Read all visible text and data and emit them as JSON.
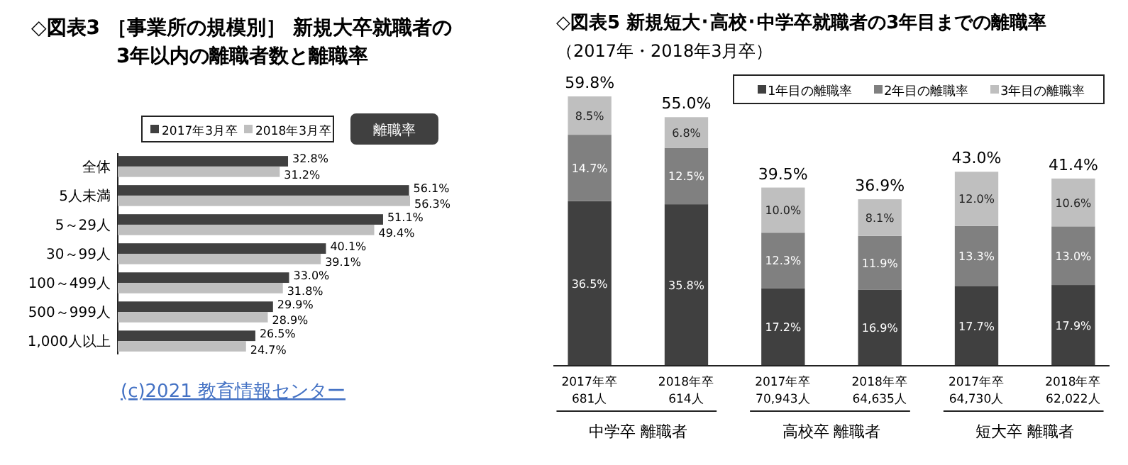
{
  "chart_data": [
    {
      "type": "bar",
      "orientation": "horizontal",
      "title": "◇図表3 ［事業所の規模別］ 新規大卒就職者の\n3年以内の離職者数と離職率",
      "categories": [
        "全体",
        "5人未満",
        "5～29人",
        "30～99人",
        "100～499人",
        "500～999人",
        "1,000人以上"
      ],
      "series": [
        {
          "name": "2017年3月卒",
          "color": "#404040",
          "values": [
            32.8,
            56.1,
            51.1,
            40.1,
            33.0,
            29.9,
            26.5
          ],
          "value_labels": [
            "32.8%",
            "56.1%",
            "51.1%",
            "40.1%",
            "33.0%",
            "29.9%",
            "26.5%"
          ]
        },
        {
          "name": "2018年3月卒",
          "color": "#bfbfbf",
          "values": [
            31.2,
            56.3,
            49.4,
            39.1,
            31.8,
            28.9,
            24.7
          ],
          "value_labels": [
            "31.2%",
            "56.3%",
            "49.4%",
            "39.1%",
            "31.8%",
            "28.9%",
            "24.7%"
          ]
        }
      ],
      "legend": "top",
      "annotations": [
        "離職率",
        "(c)2021 教育情報センター"
      ]
    },
    {
      "type": "bar",
      "stacked": true,
      "title": "◇図表5 新規短大･高校･中学卒就職者の3年目までの離職率",
      "subtitle": "（2017年・2018年3月卒）",
      "categories": [
        "2017年卒\n681人",
        "2018年卒\n614人",
        "2017年卒\n70,943人",
        "2018年卒\n64,635人",
        "2017年卒\n64,730人",
        "2018年卒\n62,022人"
      ],
      "series": [
        {
          "name": "1年目の離職率",
          "color": "#404040",
          "values": [
            36.5,
            35.8,
            17.2,
            16.9,
            17.7,
            17.9
          ],
          "value_labels": [
            "36.5%",
            "35.8%",
            "17.2%",
            "16.9%",
            "17.7%",
            "17.9%"
          ]
        },
        {
          "name": "2年目の離職率",
          "color": "#808080",
          "values": [
            14.7,
            12.5,
            12.3,
            11.9,
            13.3,
            13.0
          ],
          "value_labels": [
            "14.7%",
            "12.5%",
            "12.3%",
            "11.9%",
            "13.3%",
            "13.0%"
          ]
        },
        {
          "name": "3年目の離職率",
          "color": "#bfbfbf",
          "values": [
            8.5,
            6.8,
            10.0,
            8.1,
            12.0,
            10.6
          ],
          "value_labels": [
            "8.5%",
            "6.8%",
            "10.0%",
            "8.1%",
            "12.0%",
            "10.6%"
          ]
        }
      ],
      "totals": [
        "59.8%",
        "55.0%",
        "39.5%",
        "36.9%",
        "43.0%",
        "41.4%"
      ],
      "legend": "top right",
      "annotations": [
        "中学卒 離職者",
        "高校卒 離職者",
        "短大卒 離職者"
      ]
    }
  ]
}
